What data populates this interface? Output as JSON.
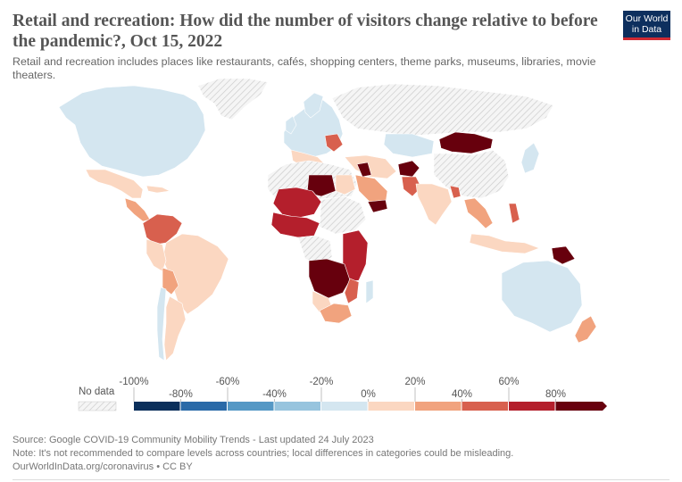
{
  "header": {
    "title": "Retail and recreation: How did the number of visitors change relative to before the pandemic?, Oct 15, 2022",
    "subtitle": "Retail and recreation includes places like restaurants, cafés, shopping centers, theme parks, museums, libraries, movie theaters."
  },
  "logo": {
    "text": "Our World in Data"
  },
  "legend": {
    "no_data_label": "No data",
    "tick_labels": [
      "-100%",
      "-80%",
      "-60%",
      "-40%",
      "-20%",
      "0%",
      "20%",
      "40%",
      "60%",
      "80%"
    ],
    "bins": [
      {
        "from": -100,
        "to": -80,
        "color": "#0b2f5b"
      },
      {
        "from": -80,
        "to": -60,
        "color": "#2a6aa8"
      },
      {
        "from": -60,
        "to": -40,
        "color": "#5598c5"
      },
      {
        "from": -40,
        "to": -20,
        "color": "#97c4de"
      },
      {
        "from": -20,
        "to": 0,
        "color": "#d4e6f0"
      },
      {
        "from": 0,
        "to": 20,
        "color": "#fbd7c1"
      },
      {
        "from": 20,
        "to": 40,
        "color": "#f1a37e"
      },
      {
        "from": 40,
        "to": 60,
        "color": "#d8604e"
      },
      {
        "from": 60,
        "to": 80,
        "color": "#b41f2c"
      },
      {
        "from": 80,
        "to": null,
        "color": "#67000d"
      }
    ]
  },
  "map_data": {
    "date": "Oct 15, 2022",
    "color_scale": "binned choropleth, -100% to 80%+",
    "regions": [
      {
        "name": "North America",
        "category": "-20% to 0%"
      },
      {
        "name": "Greenland",
        "category": "no data"
      },
      {
        "name": "Mexico",
        "category": "0% to 20%"
      },
      {
        "name": "Central America",
        "category": "20% to 40%"
      },
      {
        "name": "Venezuela / Colombia",
        "category": "40% to 60%"
      },
      {
        "name": "Brazil",
        "category": "0% to 20%"
      },
      {
        "name": "Bolivia",
        "category": "20% to 40%"
      },
      {
        "name": "Argentina",
        "category": "0% to 20%"
      },
      {
        "name": "Chile",
        "category": "-20% to 0%"
      },
      {
        "name": "Europe",
        "category": "-20% to 0%"
      },
      {
        "name": "Russia",
        "category": "no data"
      },
      {
        "name": "Mongolia",
        "category": "80% and above"
      },
      {
        "name": "China",
        "category": "no data"
      },
      {
        "name": "Japan",
        "category": "-20% to 0%"
      },
      {
        "name": "Afghanistan",
        "category": "80% and above"
      },
      {
        "name": "Pakistan",
        "category": "40% to 60%"
      },
      {
        "name": "India",
        "category": "0% to 20%"
      },
      {
        "name": "Saudi Arabia",
        "category": "20% to 40%"
      },
      {
        "name": "Yemen",
        "category": "80% and above"
      },
      {
        "name": "Libya",
        "category": "80% and above"
      },
      {
        "name": "Mali / Niger",
        "category": "60% to 80%"
      },
      {
        "name": "Nigeria",
        "category": "60% to 80%"
      },
      {
        "name": "Angola / Zambia",
        "category": "80% and above"
      },
      {
        "name": "Kenya / Tanzania",
        "category": "60% to 80%"
      },
      {
        "name": "South Africa",
        "category": "20% to 40%"
      },
      {
        "name": "Papua New Guinea",
        "category": "80% and above"
      },
      {
        "name": "Australia",
        "category": "-20% to 0%"
      },
      {
        "name": "New Zealand",
        "category": "20% to 40%"
      }
    ]
  },
  "footer": {
    "source": "Source: Google COVID-19 Community Mobility Trends - Last updated 24 July 2023",
    "note": "Note: It's not recommended to compare levels across countries; local differences in categories could be misleading.",
    "credit": "OurWorldInData.org/coronavirus • CC BY"
  },
  "colors": {
    "no_data_hatch": "#cccccc",
    "nd_background": "#f5f5f5",
    "ocean": "#ffffff"
  }
}
